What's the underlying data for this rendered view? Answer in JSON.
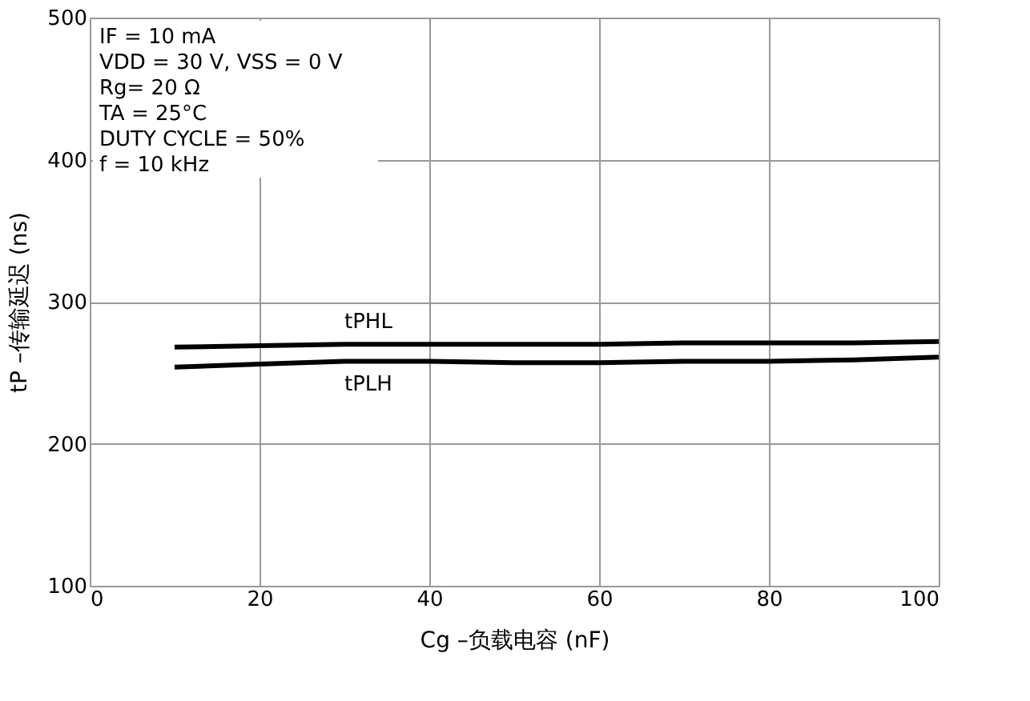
{
  "chart_data": {
    "type": "line",
    "xlabel": "Cg –负载电容 (nF)",
    "ylabel": "tP –传输延迟 (ns)",
    "x": [
      10,
      20,
      30,
      40,
      50,
      60,
      70,
      80,
      90,
      100
    ],
    "series": [
      {
        "name": "tPHL",
        "color": "#000000",
        "values": [
          268,
          269,
          270,
          270,
          270,
          270,
          271,
          271,
          271,
          272
        ]
      },
      {
        "name": "tPLH",
        "color": "#000000",
        "values": [
          254,
          256,
          258,
          258,
          257,
          257,
          258,
          258,
          259,
          261
        ]
      }
    ],
    "annotations": [
      "IF = 10 mA",
      "VDD = 30 V, VSS = 0 V",
      "Rg= 20 Ω",
      "TA = 25°C",
      "DUTY CYCLE = 50%",
      "f = 10 kHz"
    ],
    "xlim": [
      0,
      100
    ],
    "xticks": [
      0,
      20,
      40,
      60,
      80,
      100
    ],
    "ylim": [
      100,
      500
    ],
    "yticks": [
      100,
      200,
      300,
      400,
      500
    ],
    "grid": true,
    "legend": false,
    "marker": "none",
    "line_style": "solid"
  }
}
